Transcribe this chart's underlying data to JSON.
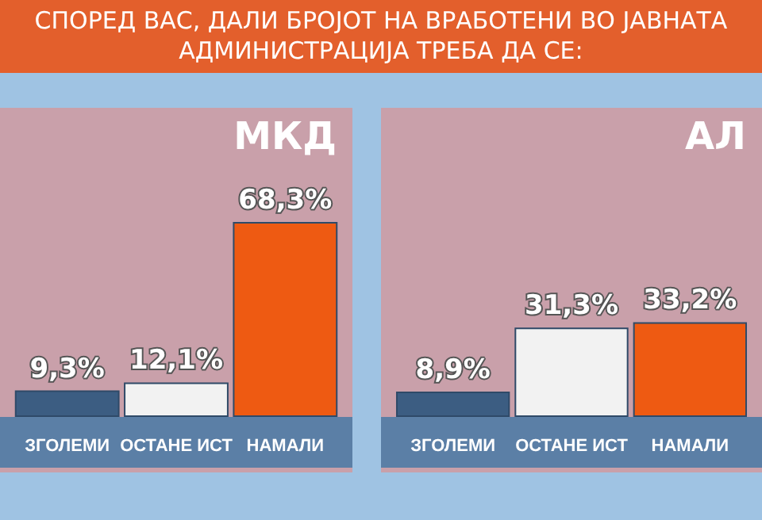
{
  "chart_data": [
    {
      "type": "bar",
      "title": "СПОРЕД ВАС, ДАЛИ БРОЈОТ НА ВРАБОТЕНИ ВО ЈАВНАТА АДМИНИСТРАЦИЈА ТРЕБА ДА СЕ:",
      "subtitle": "МКД",
      "categories": [
        "ЗГОЛЕМИ",
        "ОСТАНЕ ИСТ",
        "НАМАЛИ"
      ],
      "values": [
        9.3,
        12.1,
        68.3
      ],
      "colors": [
        "#3c5d82",
        "#f2f2f2",
        "#ee5a12"
      ],
      "value_labels": [
        "9,3%",
        "12,1%",
        "68,3%"
      ]
    },
    {
      "type": "bar",
      "subtitle": "АЛ",
      "categories": [
        "ЗГОЛЕМИ",
        "ОСТАНЕ ИСТ",
        "НАМАЛИ"
      ],
      "values": [
        8.9,
        31.3,
        33.2
      ],
      "colors": [
        "#3c5d82",
        "#f2f2f2",
        "#ee5a12"
      ],
      "value_labels": [
        "8,9%",
        "31,3%",
        "33,2%"
      ]
    }
  ]
}
